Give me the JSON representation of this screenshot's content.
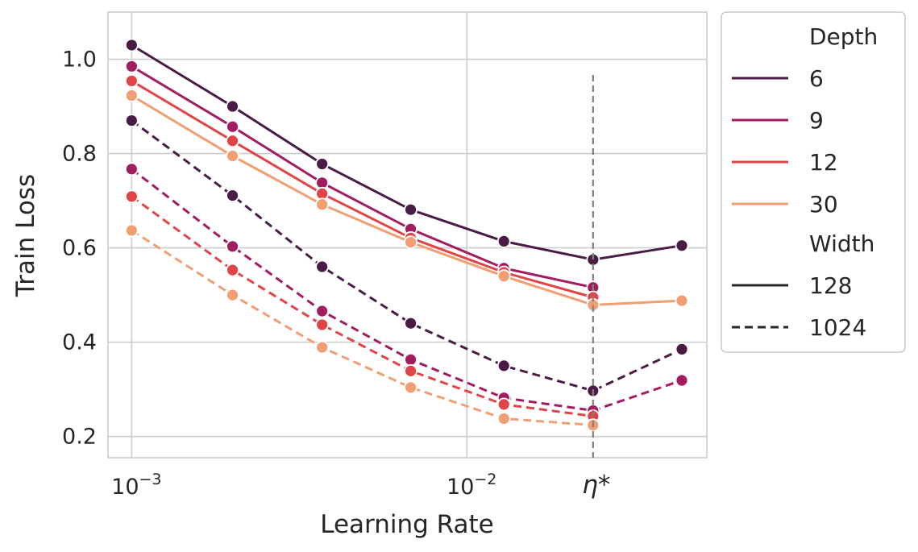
{
  "chart_data": {
    "type": "line",
    "title": "",
    "xlabel": "Learning Rate",
    "ylabel": "Train Loss",
    "x_scale": "log",
    "x": [
      0.001,
      0.002,
      0.0037,
      0.0068,
      0.0129,
      0.0238,
      0.0438
    ],
    "xlim": [
      0.00085,
      0.052
    ],
    "ylim": [
      0.155,
      1.1
    ],
    "y_ticks": [
      0.2,
      0.4,
      0.6,
      0.8,
      1.0
    ],
    "y_tick_labels": [
      "0.2",
      "0.4",
      "0.6",
      "0.8",
      "1.0"
    ],
    "x_ticks": [
      {
        "value": 0.001,
        "base": "10",
        "exp": "−3"
      },
      {
        "value": 0.01,
        "base": "10",
        "exp": "−2"
      }
    ],
    "grid": true,
    "annotation": {
      "x": 0.0238,
      "label": "η*",
      "style": "dashed",
      "color": "#808080"
    },
    "legend": {
      "placement": "outside-right",
      "hue_title": "Depth",
      "style_title": "Width",
      "hue_entries": [
        "6",
        "9",
        "12",
        "30"
      ],
      "style_entries": [
        {
          "label": "128",
          "dash": "solid"
        },
        {
          "label": "1024",
          "dash": "dashed"
        }
      ]
    },
    "colors": {
      "6": "#4a1c45",
      "9": "#a11d5f",
      "12": "#e04446",
      "30": "#f29e73"
    },
    "series": [
      {
        "depth": "6",
        "width": "128",
        "values": [
          1.03,
          0.9,
          0.778,
          0.681,
          0.614,
          0.575,
          0.605
        ]
      },
      {
        "depth": "9",
        "width": "128",
        "values": [
          0.985,
          0.857,
          0.738,
          0.64,
          0.557,
          0.516,
          null
        ]
      },
      {
        "depth": "12",
        "width": "128",
        "values": [
          0.954,
          0.827,
          0.715,
          0.621,
          0.548,
          0.495,
          null
        ]
      },
      {
        "depth": "30",
        "width": "128",
        "values": [
          0.923,
          0.795,
          0.692,
          0.612,
          0.54,
          0.479,
          0.488
        ]
      },
      {
        "depth": "6",
        "width": "1024",
        "values": [
          0.87,
          0.711,
          0.56,
          0.44,
          0.35,
          0.297,
          0.385
        ]
      },
      {
        "depth": "9",
        "width": "1024",
        "values": [
          0.767,
          0.603,
          0.466,
          0.363,
          0.282,
          0.255,
          0.319
        ]
      },
      {
        "depth": "12",
        "width": "1024",
        "values": [
          0.709,
          0.553,
          0.437,
          0.339,
          0.268,
          0.243,
          null
        ]
      },
      {
        "depth": "30",
        "width": "1024",
        "values": [
          0.637,
          0.5,
          0.389,
          0.304,
          0.238,
          0.224,
          null
        ]
      }
    ]
  }
}
